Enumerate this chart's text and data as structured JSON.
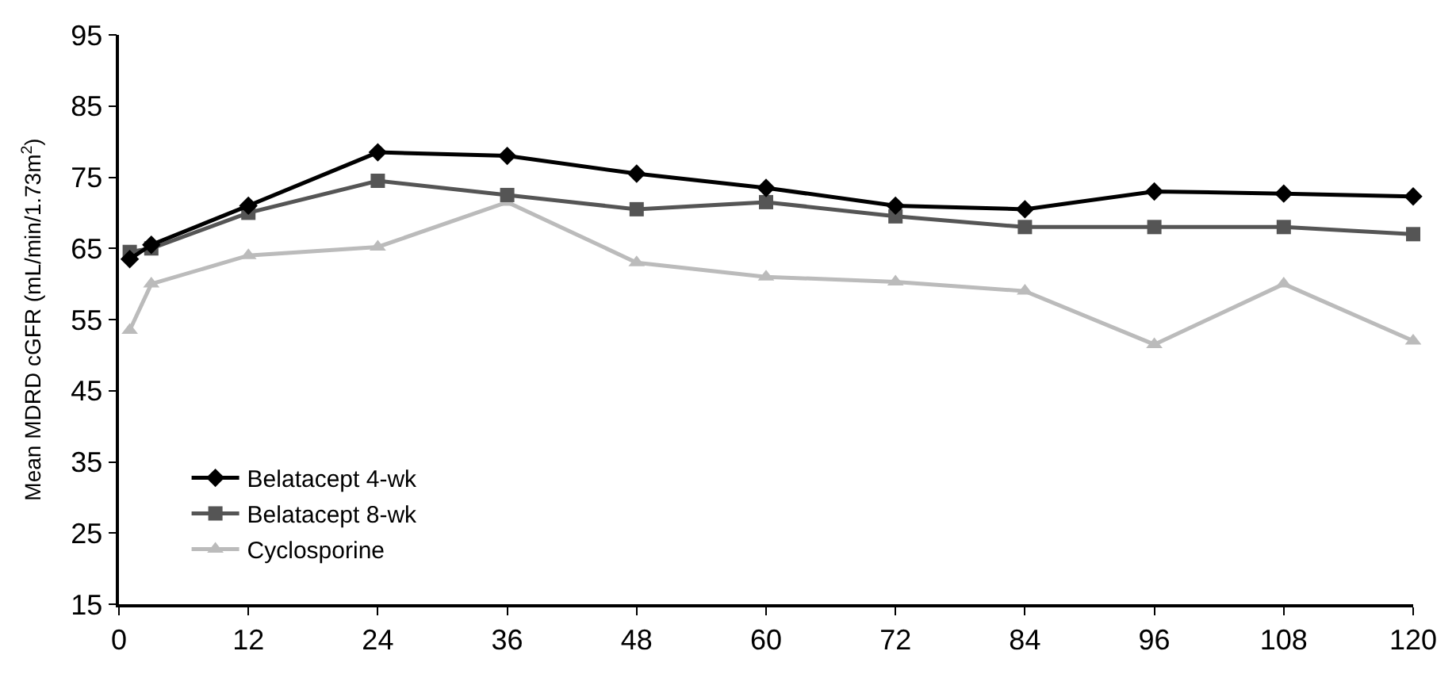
{
  "chart_data": {
    "type": "line",
    "ylabel": "Mean MDRD cGFR (mL/min/1.73m$^{2}$)",
    "x": [
      1,
      3,
      12,
      24,
      36,
      48,
      60,
      72,
      84,
      96,
      108,
      120
    ],
    "xlim": [
      0,
      120
    ],
    "xticks": [
      0,
      12,
      24,
      36,
      48,
      60,
      72,
      84,
      96,
      108,
      120
    ],
    "ylim": [
      15,
      95
    ],
    "yticks": [
      15,
      25,
      35,
      45,
      55,
      65,
      75,
      85,
      95
    ],
    "legend": "bottom left",
    "line_style": "solid",
    "series": [
      {
        "name": "Belatacept 4-wk",
        "color": "#000000",
        "marker": "diamond",
        "values": [
          63.5,
          65.5,
          71,
          78.5,
          78,
          75.5,
          73.5,
          71,
          70.5,
          73,
          72.7,
          72.3
        ]
      },
      {
        "name": "Belatacept 8-wk",
        "color": "#555555",
        "marker": "square",
        "values": [
          64.5,
          65,
          70,
          74.5,
          72.5,
          70.5,
          71.5,
          69.5,
          68,
          68,
          68,
          67
        ]
      },
      {
        "name": "Cyclosporine",
        "color": "#bbbbbb",
        "marker": "triangle",
        "values": [
          53.5,
          60,
          64,
          65.2,
          71.5,
          63,
          61,
          60.3,
          59,
          51.5,
          60,
          52
        ]
      }
    ]
  }
}
